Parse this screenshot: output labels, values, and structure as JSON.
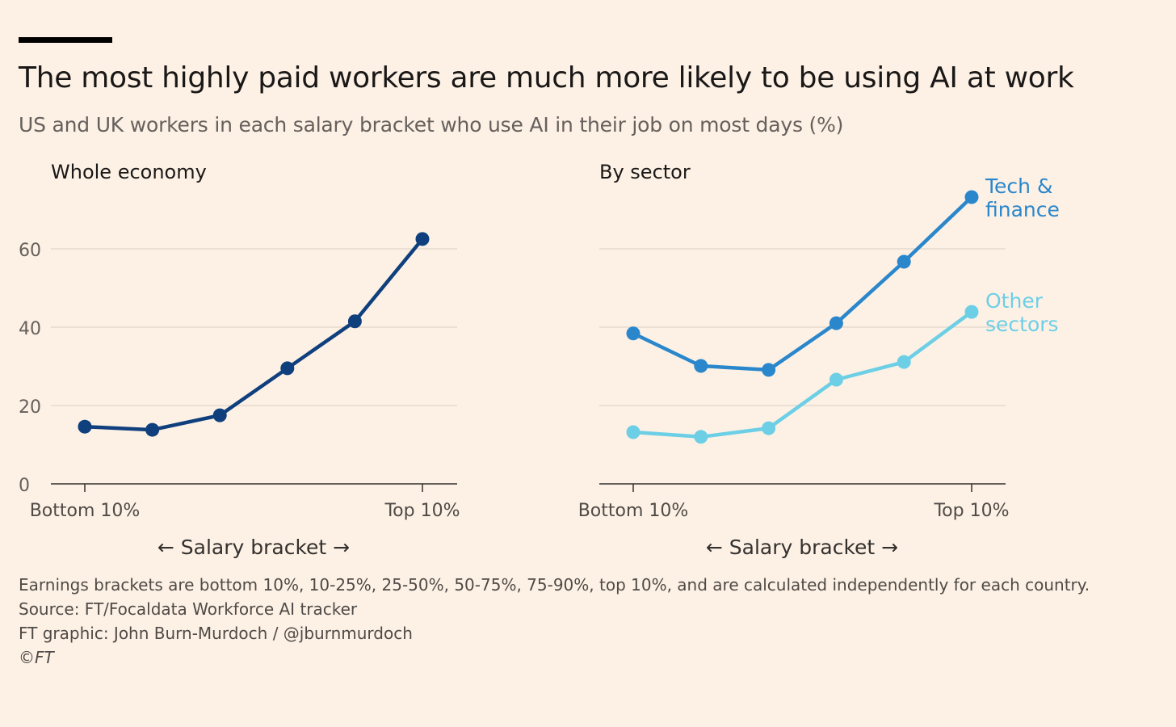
{
  "title": "The most highly paid workers are much more likely to be using AI at work",
  "subtitle": "US and UK workers in each salary bracket who use AI in their job on most days (%)",
  "notes": [
    "Earnings brackets are bottom 10%, 10-25%, 25-50%, 50-75%, 75-90%, top 10%, and are calculated independently for each country.",
    "Source: FT/Focaldata Workforce AI tracker",
    "FT graphic: John Burn-Murdoch / @jburnmurdoch",
    "©FT"
  ],
  "colors": {
    "background": "#fdf1e5",
    "whole": "#0f3f7d",
    "tech": "#2a87cc",
    "other": "#6dcfe6",
    "grid": "#e6dbd0"
  },
  "chart_data": [
    {
      "type": "line",
      "title": "Whole economy",
      "xlabel": "← Salary bracket →",
      "ylabel": "",
      "categories": [
        "Bottom 10%",
        "10-25%",
        "25-50%",
        "50-75%",
        "75-90%",
        "Top 10%"
      ],
      "x_tick_labels": [
        "Bottom 10%",
        "Top 10%"
      ],
      "y_ticks": [
        0,
        20,
        40,
        60
      ],
      "ylim": [
        0,
        75
      ],
      "grid": true,
      "series": [
        {
          "name": "Whole economy",
          "color": "#0f3f7d",
          "values": [
            14.6,
            13.8,
            17.5,
            29.5,
            41.5,
            62.5
          ]
        }
      ]
    },
    {
      "type": "line",
      "title": "By sector",
      "xlabel": "← Salary bracket →",
      "ylabel": "",
      "categories": [
        "Bottom 10%",
        "10-25%",
        "25-50%",
        "50-75%",
        "75-90%",
        "Top 10%"
      ],
      "x_tick_labels": [
        "Bottom 10%",
        "Top 10%"
      ],
      "y_ticks": [
        0,
        20,
        40,
        60
      ],
      "ylim": [
        0,
        75
      ],
      "grid": true,
      "series": [
        {
          "name": "Tech & finance",
          "label_lines": [
            "Tech &",
            "finance"
          ],
          "color": "#2a87cc",
          "values": [
            38.4,
            30.1,
            29.1,
            41.0,
            56.7,
            73.2
          ]
        },
        {
          "name": "Other sectors",
          "label_lines": [
            "Other",
            "sectors"
          ],
          "color": "#6dcfe6",
          "values": [
            13.2,
            12.0,
            14.2,
            26.6,
            31.1,
            43.9
          ]
        }
      ]
    }
  ]
}
